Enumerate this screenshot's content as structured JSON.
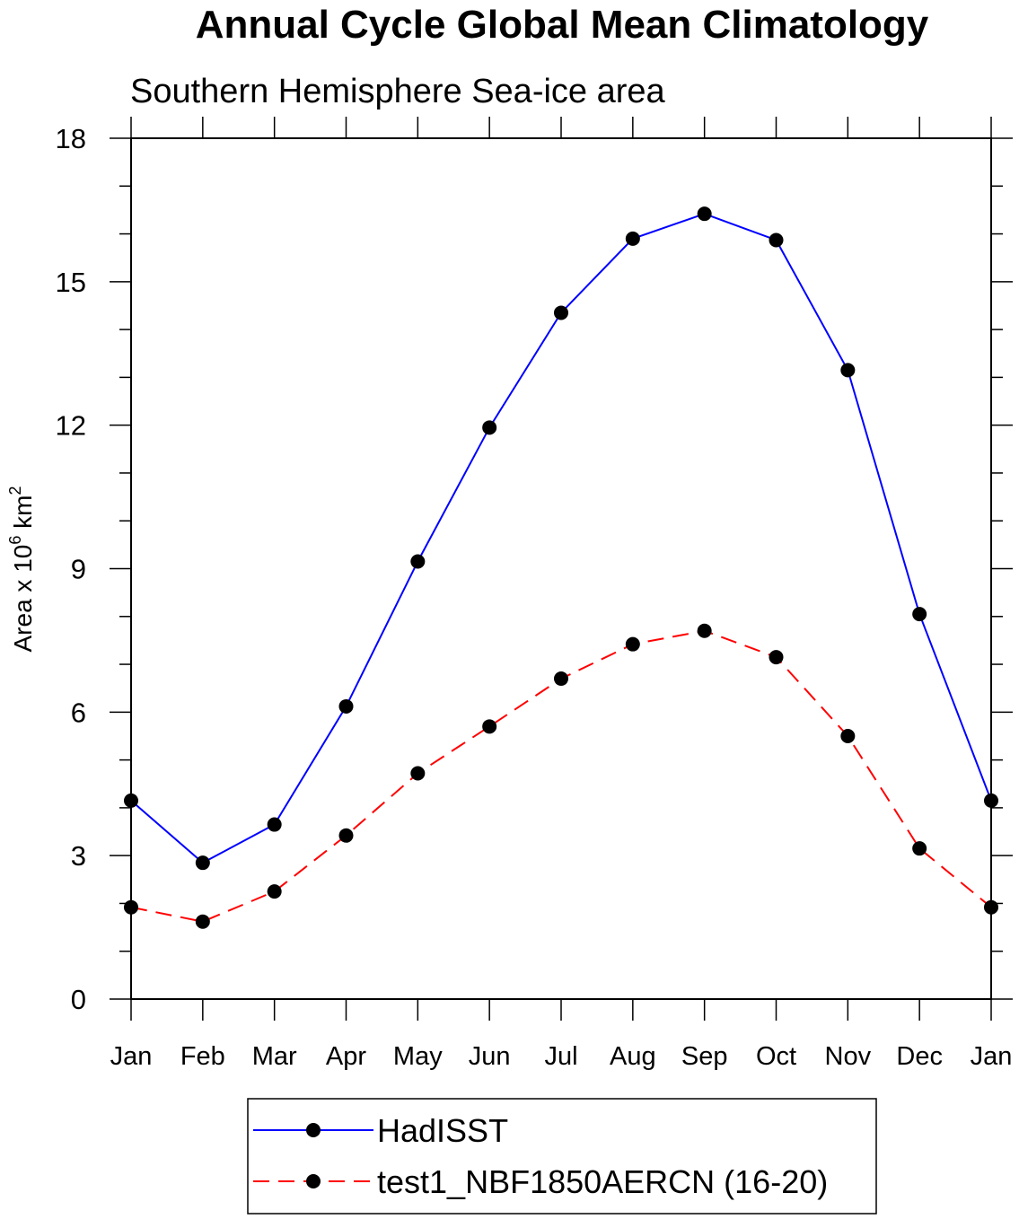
{
  "chart_data": {
    "type": "line",
    "title": "Annual Cycle Global Mean Climatology",
    "subtitle": "Southern Hemisphere Sea-ice area",
    "ylabel": "Area x 10",
    "ylabel_exp1": "6",
    "ylabel_unit": " km",
    "ylabel_exp2": "2",
    "xlabel": "",
    "categories": [
      "Jan",
      "Feb",
      "Mar",
      "Apr",
      "May",
      "Jun",
      "Jul",
      "Aug",
      "Sep",
      "Oct",
      "Nov",
      "Dec",
      "Jan"
    ],
    "ylim": [
      0,
      18
    ],
    "yticks": [
      "0",
      "3",
      "6",
      "9",
      "12",
      "15",
      "18"
    ],
    "series": [
      {
        "name": "HadISST",
        "color": "#0000ff",
        "dash": "solid",
        "values": [
          4.15,
          2.85,
          3.65,
          6.12,
          9.15,
          11.95,
          14.35,
          15.9,
          16.42,
          15.87,
          13.15,
          8.05,
          4.15
        ]
      },
      {
        "name": "test1_NBF1850AERCN (16-20)",
        "color": "#ff0000",
        "dash": "dashed",
        "values": [
          1.92,
          1.62,
          2.25,
          3.42,
          4.72,
          5.7,
          6.7,
          7.42,
          7.7,
          7.15,
          5.5,
          3.15,
          1.92
        ]
      }
    ]
  }
}
